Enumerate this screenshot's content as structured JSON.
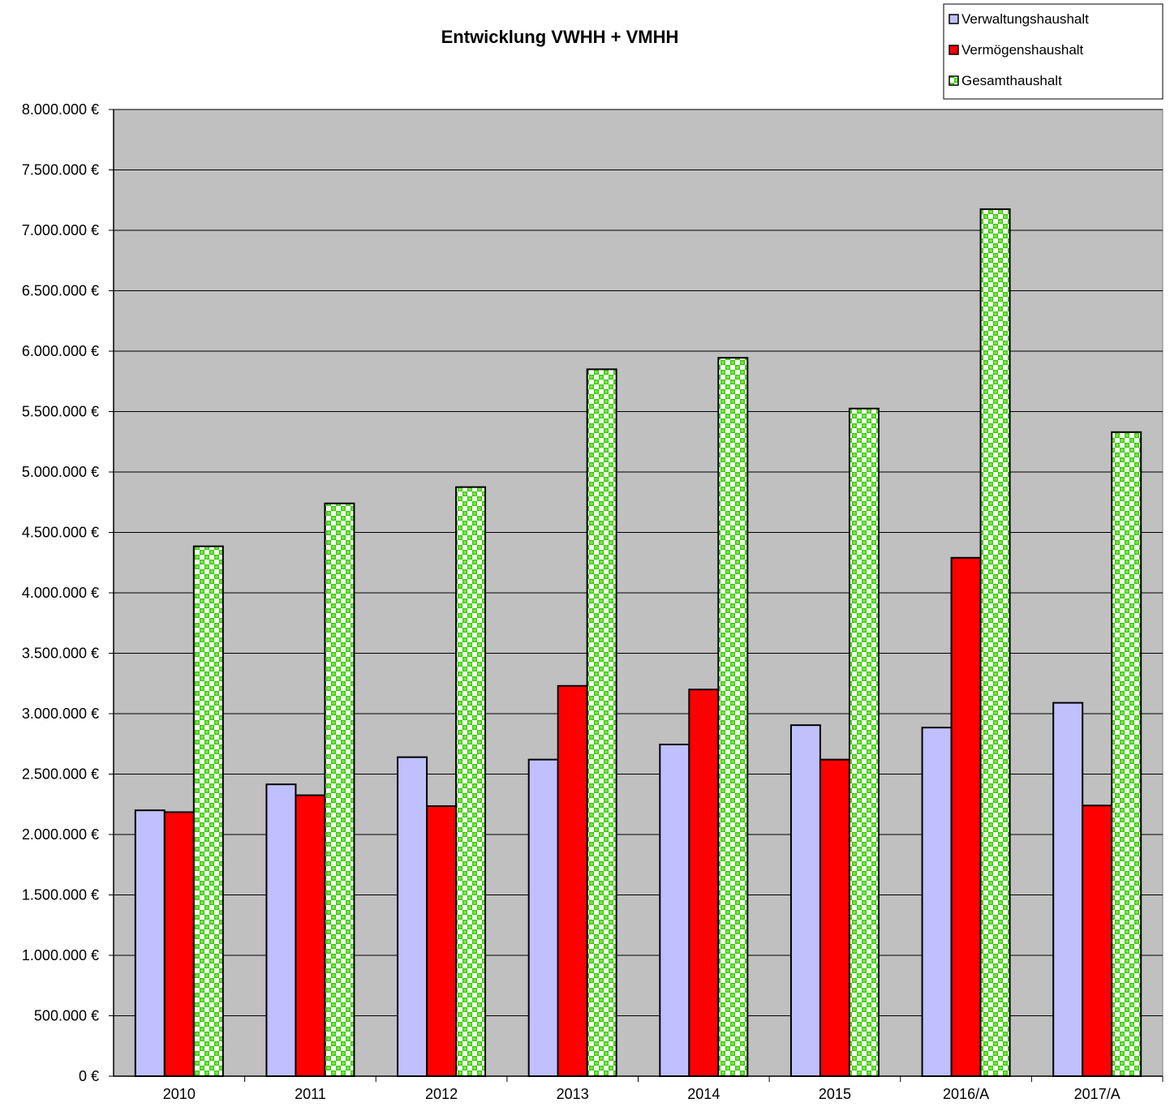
{
  "chart_data": {
    "type": "bar",
    "title": "Entwicklung VWHH + VMHH",
    "xlabel": "",
    "ylabel": "",
    "categories": [
      "2010",
      "2011",
      "2012",
      "2013",
      "2014",
      "2015",
      "2016/A",
      "2017/A"
    ],
    "ylim": [
      0,
      8000000
    ],
    "ytick_step": 500000,
    "ytick_labels": [
      "0 €",
      "500.000 €",
      "1.000.000 €",
      "1.500.000 €",
      "2.000.000 €",
      "2.500.000 €",
      "3.000.000 €",
      "3.500.000 €",
      "4.000.000 €",
      "4.500.000 €",
      "5.000.000 €",
      "5.500.000 €",
      "6.000.000 €",
      "6.500.000 €",
      "7.000.000 €",
      "7.500.000 €",
      "8.000.000 €"
    ],
    "grid": true,
    "legend_position": "top-right",
    "plot_background": "#c0c0c0",
    "series": [
      {
        "name": "Verwaltungshaushalt",
        "color": "#c0c0ff",
        "pattern": "solid",
        "values": [
          2200000,
          2415000,
          2640000,
          2620000,
          2745000,
          2905000,
          2885000,
          3090000
        ]
      },
      {
        "name": "Vermögenshaushalt",
        "color": "#ff0000",
        "pattern": "solid",
        "values": [
          2185000,
          2325000,
          2235000,
          3230000,
          3200000,
          2620000,
          4290000,
          2240000
        ]
      },
      {
        "name": "Gesamthaushalt",
        "color": "#33cc00",
        "pattern": "checker",
        "values": [
          4385000,
          4740000,
          4875000,
          5850000,
          5945000,
          5525000,
          7175000,
          5330000
        ]
      }
    ]
  }
}
